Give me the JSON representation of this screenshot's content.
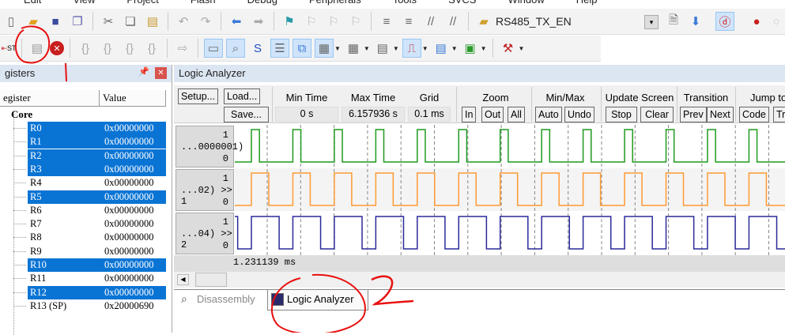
{
  "menu": [
    "Edit",
    "View",
    "Project",
    "Flash",
    "Debug",
    "Peripherals",
    "Tools",
    "SVCS",
    "Window",
    "Help"
  ],
  "toolbar": {
    "target": "RS485_TX_EN",
    "reset_label": "ST"
  },
  "registers": {
    "title": "gisters",
    "col_register": "egister",
    "col_value": "Value",
    "group": "Core",
    "rows": [
      {
        "name": "R0",
        "value": "0x00000000",
        "selected": true
      },
      {
        "name": "R1",
        "value": "0x00000000",
        "selected": true
      },
      {
        "name": "R2",
        "value": "0x00000000",
        "selected": true
      },
      {
        "name": "R3",
        "value": "0x00000000",
        "selected": true
      },
      {
        "name": "R4",
        "value": "0x00000000",
        "selected": false
      },
      {
        "name": "R5",
        "value": "0x00000000",
        "selected": true
      },
      {
        "name": "R6",
        "value": "0x00000000",
        "selected": false
      },
      {
        "name": "R7",
        "value": "0x00000000",
        "selected": false
      },
      {
        "name": "R8",
        "value": "0x00000000",
        "selected": false
      },
      {
        "name": "R9",
        "value": "0x00000000",
        "selected": false
      },
      {
        "name": "R10",
        "value": "0x00000000",
        "selected": true
      },
      {
        "name": "R11",
        "value": "0x00000000",
        "selected": false
      },
      {
        "name": "R12",
        "value": "0x00000000",
        "selected": true
      },
      {
        "name": "R13 (SP)",
        "value": "0x20000690",
        "selected": false
      }
    ]
  },
  "la": {
    "title": "Logic Analyzer",
    "setup": "Setup...",
    "load": "Load...",
    "save": "Save...",
    "min_time_label": "Min Time",
    "min_time": "0 s",
    "max_time_label": "Max Time",
    "max_time": "6.157936 s",
    "grid_label": "Grid",
    "grid": "0.1 ms",
    "zoom_label": "Zoom",
    "zoom_in": "In",
    "zoom_out": "Out",
    "zoom_all": "All",
    "minmax_label": "Min/Max",
    "auto": "Auto",
    "undo": "Undo",
    "update_label": "Update Screen",
    "stop": "Stop",
    "clear": "Clear",
    "transition_label": "Transition",
    "prev": "Prev",
    "next": "Next",
    "jump_label": "Jump to",
    "code": "Code",
    "trace": "Tr",
    "cursor_time": "1.231139 ms",
    "signals": [
      {
        "label": "...0000001)",
        "hi": "1",
        "lo": "0",
        "color": "#1f9a1f",
        "period_ms": 0.124,
        "high_ms": 0.024
      },
      {
        "label": "...02) >> 1",
        "hi": "1",
        "lo": "0",
        "color": "#ff9a33",
        "period_ms": 0.124,
        "high_ms": 0.052
      },
      {
        "label": "...04) >> 2",
        "hi": "1",
        "lo": "0",
        "color": "#2a2a9a",
        "period_ms": 0.124,
        "high_ms": 0.083
      }
    ]
  },
  "tabs": [
    {
      "label": "Disassembly",
      "active": false
    },
    {
      "label": "Logic Analyzer",
      "active": true
    }
  ],
  "annotations": {
    "one": "1",
    "two": "2"
  }
}
